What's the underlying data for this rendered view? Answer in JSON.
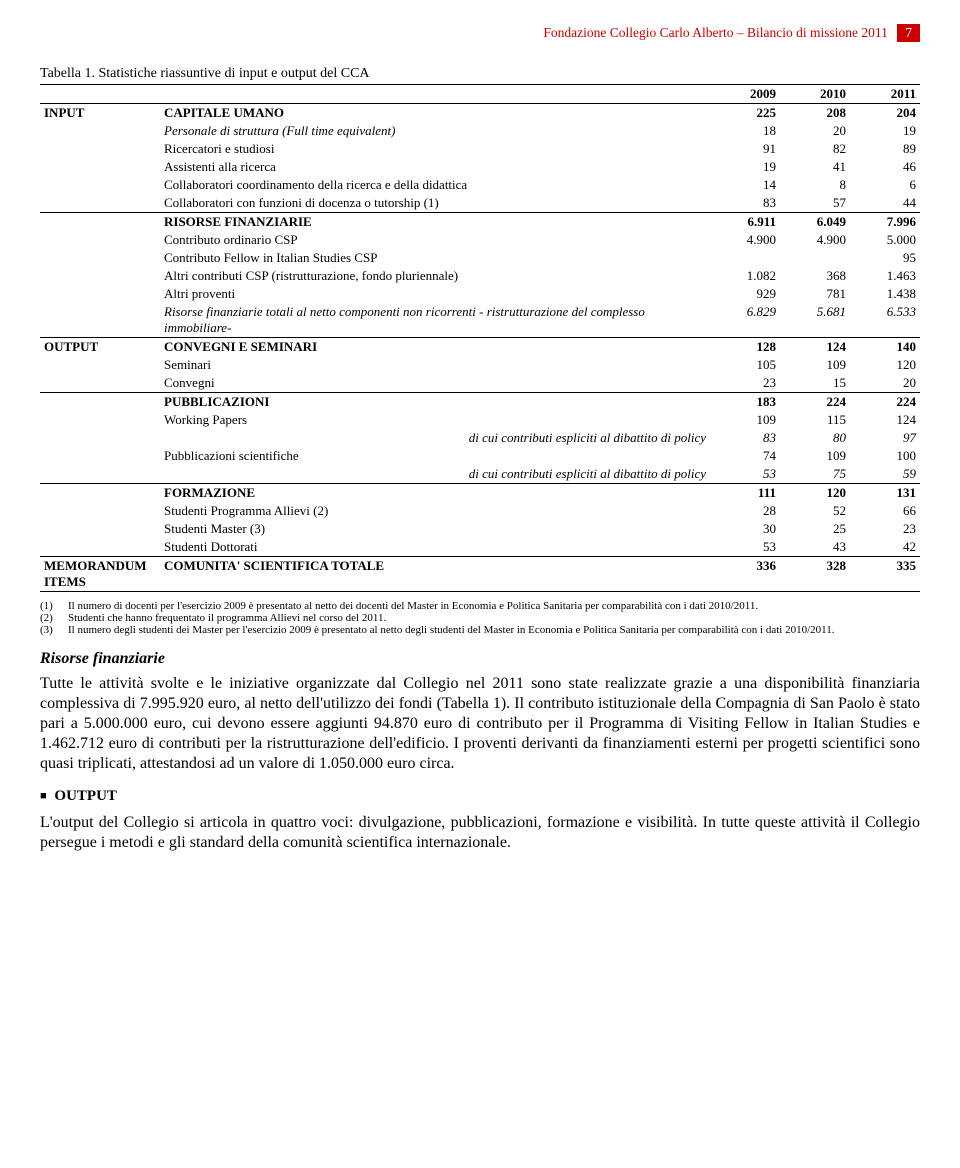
{
  "header": {
    "title": "Fondazione Collegio Carlo Alberto – Bilancio di missione 2011",
    "page": "7"
  },
  "table_caption": "Tabella 1. Statistiche riassuntive di input e output del CCA",
  "years": [
    "2009",
    "2010",
    "2011"
  ],
  "sections": {
    "input": {
      "label": "INPUT",
      "groups": [
        {
          "title": "CAPITALE UMANO",
          "v": [
            "225",
            "208",
            "204"
          ],
          "bold": true,
          "rows": [
            {
              "label": "Personale di struttura (Full time equivalent)",
              "v": [
                "18",
                "20",
                "19"
              ],
              "italicLabel": true
            },
            {
              "label": "Ricercatori e studiosi",
              "v": [
                "91",
                "82",
                "89"
              ]
            },
            {
              "label": "Assistenti alla ricerca",
              "v": [
                "19",
                "41",
                "46"
              ]
            },
            {
              "label": "Collaboratori coordinamento della ricerca e della didattica",
              "v": [
                "14",
                "8",
                "6"
              ]
            },
            {
              "label": "Collaboratori con funzioni di docenza o tutorship (1)",
              "v": [
                "83",
                "57",
                "44"
              ],
              "sup": true
            }
          ]
        },
        {
          "title": "RISORSE FINANZIARIE",
          "v": [
            "6.911",
            "6.049",
            "7.996"
          ],
          "bold": true,
          "rows": [
            {
              "label": "Contributo ordinario CSP",
              "v": [
                "4.900",
                "4.900",
                "5.000"
              ]
            },
            {
              "label": "Contributo Fellow in Italian Studies CSP",
              "v": [
                "",
                "",
                "95"
              ]
            },
            {
              "label": "Altri contributi CSP (ristrutturazione, fondo pluriennale)",
              "v": [
                "1.082",
                "368",
                "1.463"
              ]
            },
            {
              "label": "Altri proventi",
              "v": [
                "929",
                "781",
                "1.438"
              ]
            },
            {
              "label": "Risorse finanziarie totali al netto componenti non ricorrenti - ristrutturazione del complesso immobiliare-",
              "v": [
                "6.829",
                "5.681",
                "6.533"
              ],
              "italicAll": true
            }
          ]
        }
      ]
    },
    "output": {
      "label": "OUTPUT",
      "groups": [
        {
          "title": "CONVEGNI E SEMINARI",
          "v": [
            "128",
            "124",
            "140"
          ],
          "bold": true,
          "rows": [
            {
              "label": "Seminari",
              "v": [
                "105",
                "109",
                "120"
              ]
            },
            {
              "label": "Convegni",
              "v": [
                "23",
                "15",
                "20"
              ]
            }
          ]
        },
        {
          "title": "PUBBLICAZIONI",
          "v": [
            "183",
            "224",
            "224"
          ],
          "bold": true,
          "rows": [
            {
              "label": "Working Papers",
              "v": [
                "109",
                "115",
                "124"
              ]
            },
            {
              "label": "di cui contributi espliciti al dibattito di policy",
              "v": [
                "83",
                "80",
                "97"
              ],
              "sub": true
            },
            {
              "label": "Pubblicazioni scientifiche",
              "v": [
                "74",
                "109",
                "100"
              ]
            },
            {
              "label": "di cui contributi espliciti al dibattito di policy",
              "v": [
                "53",
                "75",
                "59"
              ],
              "sub": true
            }
          ]
        },
        {
          "title": "FORMAZIONE",
          "v": [
            "111",
            "120",
            "131"
          ],
          "bold": true,
          "rows": [
            {
              "label": "Studenti Programma Allievi (2)",
              "v": [
                "28",
                "52",
                "66"
              ],
              "sup": true
            },
            {
              "label": "Studenti Master (3)",
              "v": [
                "30",
                "25",
                "23"
              ],
              "sup": true
            },
            {
              "label": "Studenti Dottorati",
              "v": [
                "53",
                "43",
                "42"
              ]
            }
          ]
        }
      ]
    },
    "memo": {
      "label": "MEMORANDUM ITEMS",
      "title": "COMUNITA' SCIENTIFICA TOTALE",
      "v": [
        "336",
        "328",
        "335"
      ]
    }
  },
  "notes": [
    {
      "n": "(1)",
      "text": "Il numero di docenti per l'esercizio 2009 è presentato al netto dei docenti del Master in Economia e Politica Sanitaria per comparabilità con i dati 2010/2011."
    },
    {
      "n": "(2)",
      "text": "Studenti che hanno frequentato il programma Allievi nel corso del 2011."
    },
    {
      "n": "(3)",
      "text": "Il numero degli studenti dei Master per l'esercizio 2009 è presentato al netto degli studenti del Master in Economia e Politica Sanitaria per comparabilità con i dati 2010/2011."
    }
  ],
  "risorse": {
    "heading": "Risorse finanziarie",
    "paragraph": "Tutte le attività svolte e le iniziative organizzate dal Collegio nel 2011 sono state realizzate grazie a una disponibilità finanziaria complessiva di 7.995.920 euro, al netto dell'utilizzo dei fondi (Tabella 1). Il contributo istituzionale della Compagnia di San Paolo è stato pari a 5.000.000 euro, cui devono essere aggiunti 94.870 euro di contributo per il Programma di Visiting Fellow in Italian Studies e 1.462.712 euro di contributi per la ristrutturazione dell'edificio. I proventi derivanti da finanziamenti esterni per progetti scientifici sono quasi triplicati, attestandosi ad un valore di 1.050.000 euro circa."
  },
  "output_section": {
    "heading": "OUTPUT",
    "paragraph": "L'output del Collegio si articola in quattro voci: divulgazione, pubblicazioni, formazione e visibilità. In tutte queste attività il Collegio persegue i metodi e gli standard della comunità scientifica internazionale."
  }
}
